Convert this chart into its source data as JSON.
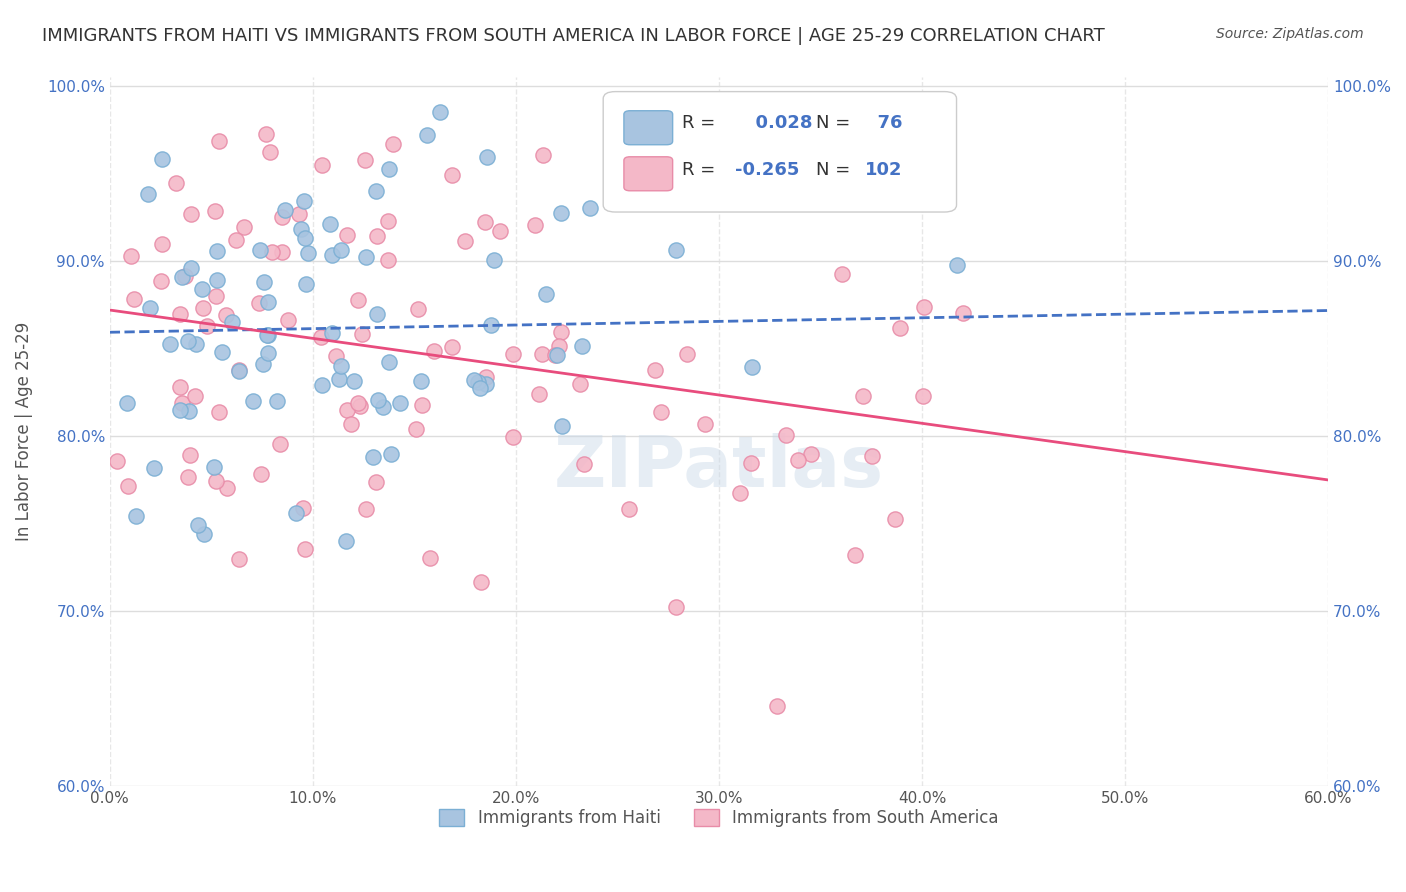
{
  "title": "IMMIGRANTS FROM HAITI VS IMMIGRANTS FROM SOUTH AMERICA IN LABOR FORCE | AGE 25-29 CORRELATION CHART",
  "source": "Source: ZipAtlas.com",
  "xlabel": "",
  "ylabel": "In Labor Force | Age 25-29",
  "xlim": [
    0.0,
    0.6
  ],
  "ylim": [
    0.6,
    1.005
  ],
  "xticks": [
    0.0,
    0.1,
    0.2,
    0.3,
    0.4,
    0.5,
    0.6
  ],
  "xticklabels": [
    "0.0%",
    "10.0%",
    "20.0%",
    "30.0%",
    "40.0%",
    "50.0%",
    "60.0%"
  ],
  "yticks_left": [
    0.6,
    0.7,
    0.8,
    0.9,
    1.0
  ],
  "yticklabels_left": [
    "60.0%",
    "70.0%",
    "80.0%",
    "90.0%",
    "100.0%"
  ],
  "haiti_color": "#a8c4e0",
  "haiti_edge": "#7bafd4",
  "south_america_color": "#f4b8c8",
  "south_america_edge": "#e88ca8",
  "haiti_R": 0.028,
  "haiti_N": 76,
  "south_america_R": -0.265,
  "south_america_N": 102,
  "haiti_line_color": "#4472c4",
  "south_america_line_color": "#e84c7d",
  "background_color": "#ffffff",
  "grid_color": "#dddddd",
  "title_color": "#333333",
  "legend_label_color": "#4472c4",
  "watermark": "ZIPatlas",
  "legend1_label": "Immigrants from Haiti",
  "legend2_label": "Immigrants from South America",
  "haiti_seed": 42,
  "south_america_seed": 123
}
